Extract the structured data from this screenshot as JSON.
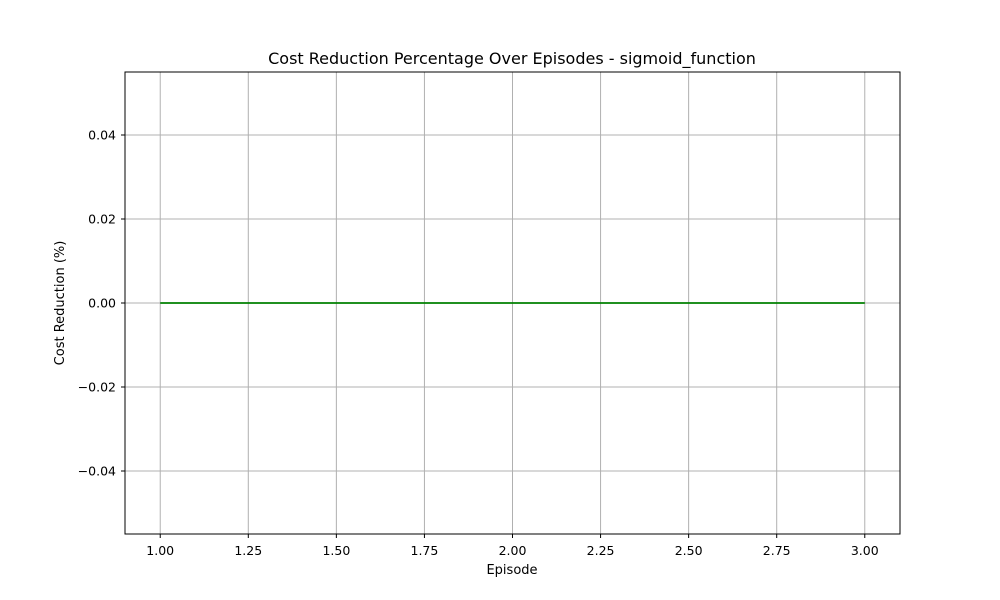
{
  "chart_data": {
    "type": "line",
    "title": "Cost Reduction Percentage Over Episodes - sigmoid_function",
    "xlabel": "Episode",
    "ylabel": "Cost Reduction (%)",
    "xlim": [
      0.9,
      3.1
    ],
    "ylim": [
      -0.055,
      0.055
    ],
    "grid": true,
    "x_ticks": [
      1.0,
      1.25,
      1.5,
      1.75,
      2.0,
      2.25,
      2.5,
      2.75,
      3.0
    ],
    "x_tick_labels": [
      "1.00",
      "1.25",
      "1.50",
      "1.75",
      "2.00",
      "2.25",
      "2.50",
      "2.75",
      "3.00"
    ],
    "y_ticks": [
      0.04,
      0.02,
      0.0,
      -0.02,
      -0.04
    ],
    "y_tick_labels": [
      "0.04",
      "0.02",
      "0.00",
      "−0.02",
      "−0.04"
    ],
    "series": [
      {
        "color": "#008000",
        "x": [
          1,
          2,
          3
        ],
        "y": [
          0,
          0,
          0
        ]
      }
    ]
  }
}
